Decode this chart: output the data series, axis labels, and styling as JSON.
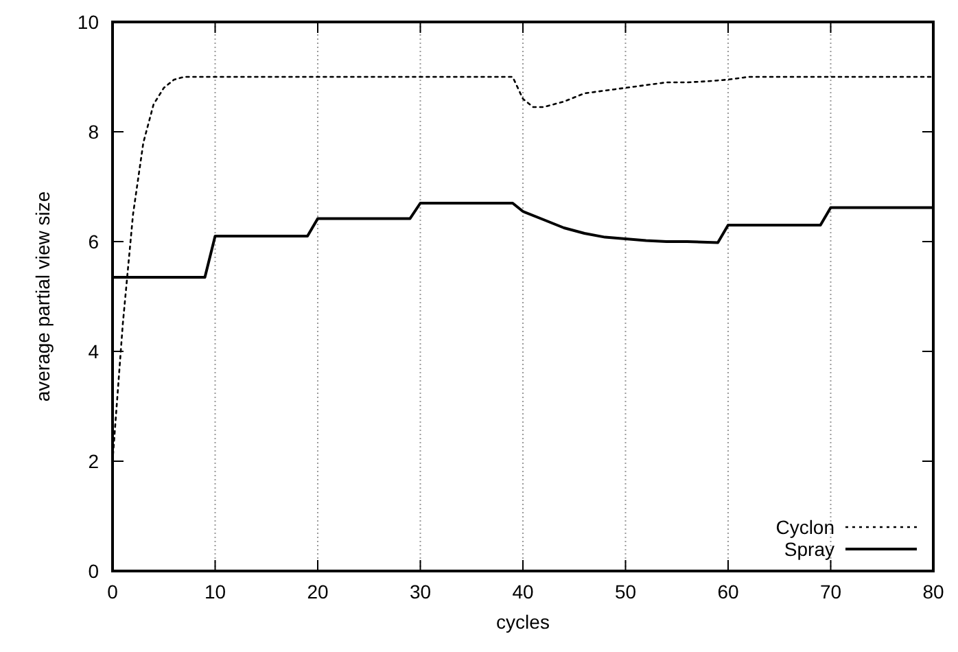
{
  "chart_data": {
    "type": "line",
    "xlabel": "cycles",
    "ylabel": "average partial view size",
    "xlim": [
      0,
      80
    ],
    "xticks": [
      0,
      10,
      20,
      30,
      40,
      50,
      60,
      70,
      80
    ],
    "ylim": [
      0,
      10
    ],
    "yticks": [
      0,
      2,
      4,
      6,
      8,
      10
    ],
    "grid": "x",
    "legend": "bottom right",
    "series": [
      {
        "name": "Cyclon",
        "color": "#000000",
        "line_style": "dotted",
        "x": [
          0,
          1,
          2,
          3,
          4,
          5,
          6,
          7,
          10,
          20,
          30,
          39,
          40,
          41,
          42,
          44,
          46,
          48,
          50,
          52,
          54,
          56,
          58,
          60,
          62,
          70,
          80
        ],
        "values": [
          2,
          4.5,
          6.5,
          7.8,
          8.5,
          8.8,
          8.95,
          9,
          9,
          9,
          9,
          9,
          8.6,
          8.45,
          8.45,
          8.55,
          8.7,
          8.75,
          8.8,
          8.85,
          8.9,
          8.9,
          8.92,
          8.95,
          9,
          9,
          9
        ]
      },
      {
        "name": "Spray",
        "color": "#000000",
        "line_style": "solid",
        "x": [
          0,
          9,
          10,
          19,
          20,
          29,
          30,
          39,
          40,
          42,
          44,
          46,
          48,
          50,
          52,
          54,
          56,
          59,
          60,
          69,
          70,
          80
        ],
        "values": [
          5.35,
          5.35,
          6.1,
          6.1,
          6.42,
          6.42,
          6.7,
          6.7,
          6.55,
          6.4,
          6.25,
          6.15,
          6.08,
          6.05,
          6.02,
          6.0,
          6.0,
          5.98,
          6.3,
          6.3,
          6.62,
          6.62
        ]
      }
    ]
  }
}
